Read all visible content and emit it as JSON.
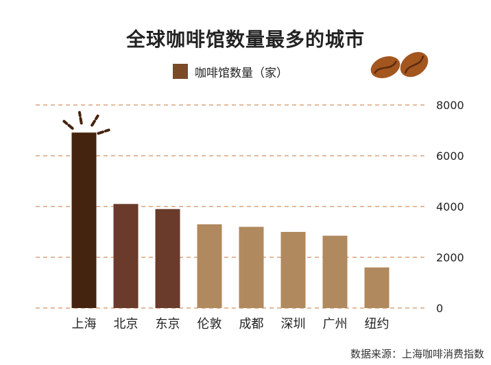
{
  "colors": {
    "top": "#45240f",
    "second": "#6a3a2a",
    "rest": "#b0895e",
    "grid": "#d9a27b",
    "legend": "#7b4a27",
    "bean": "#a4561f",
    "bean_dark": "#5a2a0e",
    "spark": "#45240f"
  },
  "legend": {
    "label": "咖啡馆数量（家）"
  },
  "footer": {
    "source": "数据来源：上海咖啡消费指数"
  },
  "chart_data": {
    "type": "bar",
    "title": "全球咖啡馆数量最多的城市",
    "categories": [
      "上海",
      "北京",
      "东京",
      "伦敦",
      "成都",
      "深圳",
      "广州",
      "纽约"
    ],
    "series": [
      {
        "name": "咖啡馆数量（家）",
        "values": [
          6913,
          4100,
          3900,
          3300,
          3200,
          3000,
          2850,
          1600
        ]
      }
    ],
    "ylim": [
      0,
      8000
    ],
    "yticks": [
      "0",
      "2000",
      "4000",
      "6000",
      "8000"
    ],
    "grid": true,
    "legend_position": "top-center",
    "highlight": "上海"
  }
}
